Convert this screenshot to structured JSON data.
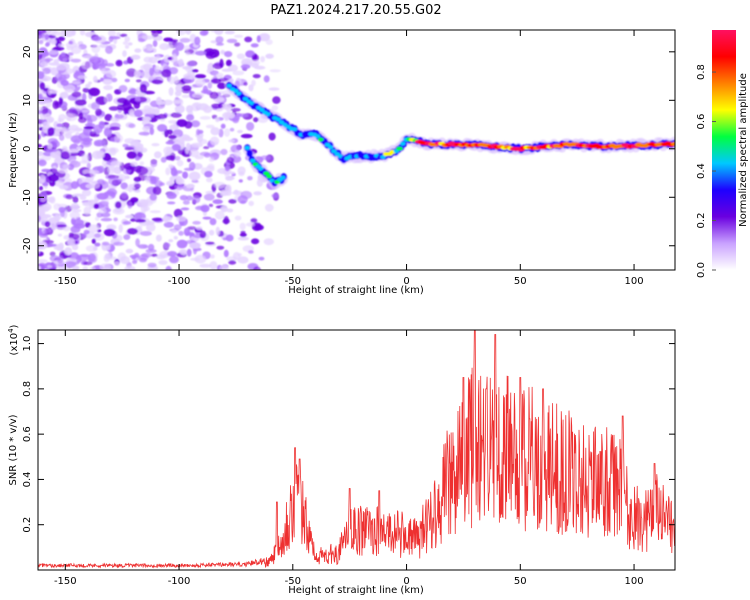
{
  "chart_data": [
    {
      "type": "heatmap",
      "title": "PAZ1.2024.217.20.55.G02",
      "xlabel": "Height of straight line (km)",
      "ylabel": "Frequency (Hz)",
      "xlim": [
        -162,
        118
      ],
      "ylim": [
        -25,
        24.5
      ],
      "xticks": [
        "-150",
        "-100",
        "-50",
        "0",
        "50",
        "100"
      ],
      "yticks": [
        "20",
        "10",
        "0",
        "-10",
        "-20"
      ],
      "colorbar": {
        "label": "Normalized spectral amplitude",
        "range": [
          0,
          0.97
        ],
        "ticks": [
          "0.0",
          "0.2",
          "0.4",
          "0.6",
          "0.8"
        ],
        "colors": [
          "#ffffff",
          "#c9a2ff",
          "#6a00e0",
          "#1e00ff",
          "#00c8ff",
          "#00ff40",
          "#ffff00",
          "#ff8000",
          "#ff0000",
          "#ff1060"
        ]
      },
      "ridge": [
        {
          "x": -78,
          "y": 13
        },
        {
          "x": -70,
          "y": 10
        },
        {
          "x": -64,
          "y": 8
        },
        {
          "x": -46,
          "y": 3
        },
        {
          "x": -40,
          "y": 3
        },
        {
          "x": -35,
          "y": 1
        },
        {
          "x": -28,
          "y": -2
        },
        {
          "x": -20,
          "y": -1.5
        },
        {
          "x": -10,
          "y": -1.5
        },
        {
          "x": -3,
          "y": 0
        },
        {
          "x": 0,
          "y": 2
        },
        {
          "x": 10,
          "y": 1
        },
        {
          "x": 30,
          "y": 0.8
        },
        {
          "x": 50,
          "y": 0
        },
        {
          "x": 70,
          "y": 0.8
        },
        {
          "x": 90,
          "y": 0.5
        },
        {
          "x": 118,
          "y": 1
        }
      ],
      "side_branch": [
        {
          "x": -70,
          "y": 0
        },
        {
          "x": -67,
          "y": -3
        },
        {
          "x": -62,
          "y": -5
        },
        {
          "x": -58,
          "y": -7
        },
        {
          "x": -54,
          "y": -6
        }
      ]
    },
    {
      "type": "line",
      "xlabel": "Height of straight line (km)",
      "ylabel": "SNR (10 * v/v)",
      "y_multiplier": "(x10",
      "y_multiplier_exp": "4",
      "y_multiplier_close": ")",
      "xlim": [
        -162,
        118
      ],
      "ylim": [
        0,
        1.06
      ],
      "xticks": [
        "-150",
        "-100",
        "-50",
        "0",
        "50",
        "100"
      ],
      "yticks": [
        "0.2",
        "0.4",
        "0.6",
        "0.8",
        "1.0"
      ],
      "color": "#ee3030",
      "envelope": [
        {
          "x": -162,
          "y": 0.02
        },
        {
          "x": -100,
          "y": 0.02
        },
        {
          "x": -70,
          "y": 0.025
        },
        {
          "x": -60,
          "y": 0.05
        },
        {
          "x": -55,
          "y": 0.2
        },
        {
          "x": -48,
          "y": 0.45
        },
        {
          "x": -45,
          "y": 0.3
        },
        {
          "x": -42,
          "y": 0.15
        },
        {
          "x": -38,
          "y": 0.08
        },
        {
          "x": -30,
          "y": 0.1
        },
        {
          "x": -25,
          "y": 0.22
        },
        {
          "x": -15,
          "y": 0.24
        },
        {
          "x": -5,
          "y": 0.22
        },
        {
          "x": 5,
          "y": 0.18
        },
        {
          "x": 12,
          "y": 0.35
        },
        {
          "x": 20,
          "y": 0.55
        },
        {
          "x": 30,
          "y": 0.75
        },
        {
          "x": 40,
          "y": 0.7
        },
        {
          "x": 50,
          "y": 0.68
        },
        {
          "x": 60,
          "y": 0.62
        },
        {
          "x": 75,
          "y": 0.55
        },
        {
          "x": 90,
          "y": 0.5
        },
        {
          "x": 96,
          "y": 0.45
        },
        {
          "x": 98,
          "y": 0.3
        },
        {
          "x": 105,
          "y": 0.3
        },
        {
          "x": 110,
          "y": 0.35
        },
        {
          "x": 118,
          "y": 0.22
        }
      ],
      "peaks": [
        {
          "x": -49,
          "y": 0.54
        },
        {
          "x": -47,
          "y": 0.49
        },
        {
          "x": -57,
          "y": 0.3
        },
        {
          "x": -25,
          "y": 0.36
        },
        {
          "x": -12,
          "y": 0.35
        },
        {
          "x": 25,
          "y": 0.85
        },
        {
          "x": 30,
          "y": 1.06
        },
        {
          "x": 39,
          "y": 1.04
        },
        {
          "x": 35,
          "y": 0.8
        },
        {
          "x": 50,
          "y": 0.85
        },
        {
          "x": 60,
          "y": 0.8
        },
        {
          "x": 95,
          "y": 0.68
        },
        {
          "x": 109,
          "y": 0.47
        }
      ]
    }
  ]
}
